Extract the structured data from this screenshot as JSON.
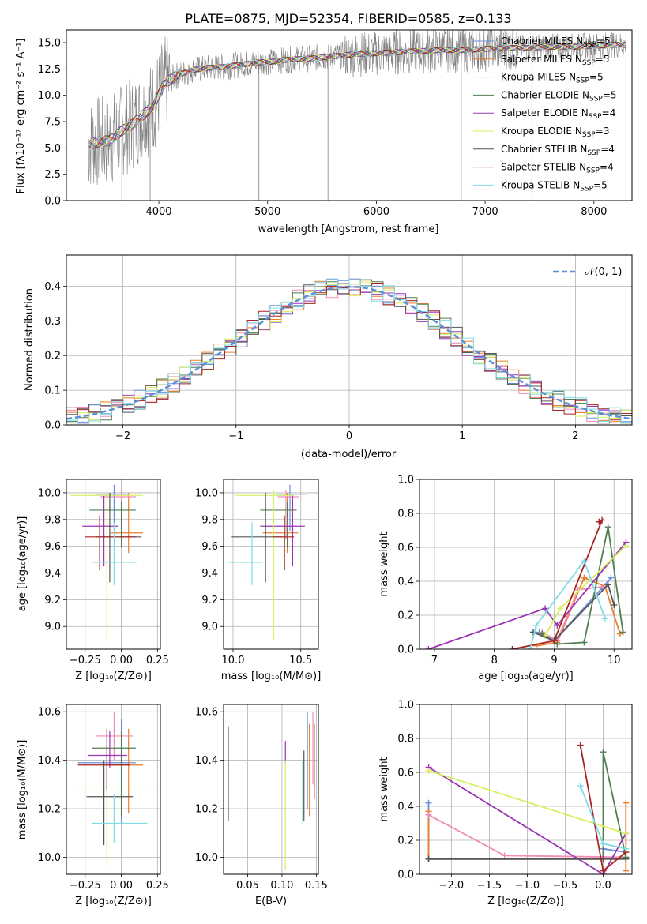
{
  "figure": {
    "title": "PLATE=0875, MJD=52354, FIBERID=0585, z=0.133"
  },
  "colors": [
    "#6a8ee0",
    "#e87d2e",
    "#f08cb8",
    "#4f7f4f",
    "#9b35b5",
    "#d8ef5e",
    "#555555",
    "#a82323",
    "#7fdbe6"
  ],
  "chart_data": [
    {
      "panel": "spectrum",
      "type": "line",
      "xlabel": "wavelength [Angstrom, rest frame]",
      "ylabel": "Flux [fλ10⁻¹⁷ erg cm⁻² s⁻¹ A⁻¹]",
      "xlim": [
        3150,
        8350
      ],
      "ylim": [
        0,
        16.2
      ],
      "xticks": [
        "4000",
        "5000",
        "6000",
        "7000",
        "8000"
      ],
      "yticks": [
        "0.0",
        "2.5",
        "5.0",
        "7.5",
        "10.0",
        "12.5",
        "15.0"
      ],
      "legend_position": "upper right",
      "data_x": [
        3350,
        3450,
        3550,
        3650,
        3750,
        3850,
        3950,
        4050,
        4150,
        4300,
        4450,
        4600,
        4750,
        4900,
        5050,
        5200,
        5400,
        5600,
        5800,
        6000,
        6200,
        6400,
        6600,
        6800,
        7000,
        7200,
        7400,
        7600,
        7800,
        8000,
        8200,
        8300
      ],
      "data_y": [
        5.3,
        5.6,
        5.7,
        6.6,
        7.2,
        8.1,
        9.0,
        11.1,
        11.8,
        12.4,
        12.6,
        12.7,
        12.9,
        13.1,
        13.2,
        13.4,
        13.5,
        13.7,
        13.9,
        14.0,
        14.1,
        14.2,
        14.3,
        14.3,
        14.4,
        14.5,
        14.5,
        14.6,
        14.6,
        14.7,
        14.8,
        14.8
      ],
      "series": [
        {
          "name": "Chabrier MILES",
          "nssp": "N",
          "nssp_sub": "SSP",
          "nssp_val": "=5"
        },
        {
          "name": "Salpeter MILES",
          "nssp": "N",
          "nssp_sub": "SSP",
          "nssp_val": "=5"
        },
        {
          "name": "Kroupa MILES",
          "nssp": "N",
          "nssp_sub": "SSP",
          "nssp_val": "=5"
        },
        {
          "name": "Chabrier ELODIE",
          "nssp": "N",
          "nssp_sub": "SSP",
          "nssp_val": "=5"
        },
        {
          "name": "Salpeter ELODIE",
          "nssp": "N",
          "nssp_sub": "SSP",
          "nssp_val": "=4"
        },
        {
          "name": "Kroupa ELODIE",
          "nssp": "N",
          "nssp_sub": "SSP",
          "nssp_val": "=3"
        },
        {
          "name": "Chabrier STELIB",
          "nssp": "N",
          "nssp_sub": "SSP",
          "nssp_val": "=4"
        },
        {
          "name": "Salpeter STELIB",
          "nssp": "N",
          "nssp_sub": "SSP",
          "nssp_val": "=4"
        },
        {
          "name": "Kroupa STELIB",
          "nssp": "N",
          "nssp_sub": "SSP",
          "nssp_val": "=5"
        }
      ]
    },
    {
      "panel": "residuals",
      "type": "histogram",
      "xlabel": "(data-model)/error",
      "ylabel": "Normed distribution",
      "xlim": [
        -2.5,
        2.5
      ],
      "ylim": [
        0,
        0.49
      ],
      "xticks": [
        "−2",
        "−1",
        "0",
        "1",
        "2"
      ],
      "yticks": [
        "0.0",
        "0.1",
        "0.2",
        "0.3",
        "0.4"
      ],
      "grid": true,
      "legend_position": "upper right",
      "reference_label": "𝒩(0, 1)",
      "bin_width": 0.1
    },
    {
      "panel": "age_vs_Z",
      "type": "errorbar",
      "xlabel": "Z [log₁₀(Z/Z⊙)]",
      "ylabel": "age  [log₁₀(age/yr)]",
      "xlim": [
        -0.38,
        0.27
      ],
      "ylim": [
        8.83,
        10.1
      ],
      "xticks": [
        "−0.25",
        "0.00",
        "0.25"
      ],
      "yticks": [
        "9.0",
        "9.2",
        "9.4",
        "9.6",
        "9.8",
        "10.0"
      ],
      "points": [
        {
          "x": -0.05,
          "y": 9.99,
          "xerr": [
            0.13,
            0.1
          ],
          "yerr": [
            0.28,
            0.07
          ]
        },
        {
          "x": 0.05,
          "y": 9.7,
          "xerr": [
            0.12,
            0.1
          ],
          "yerr": [
            0.15,
            0.3
          ]
        },
        {
          "x": 0.0,
          "y": 9.97,
          "xerr": [
            0.15,
            0.1
          ],
          "yerr": [
            0.32,
            0.05
          ]
        },
        {
          "x": 0.0,
          "y": 9.87,
          "xerr": [
            0.22,
            0.1
          ],
          "yerr": [
            0.28,
            0.06
          ]
        },
        {
          "x": -0.12,
          "y": 9.75,
          "xerr": [
            0.15,
            0.1
          ],
          "yerr": [
            0.3,
            0.23
          ]
        },
        {
          "x": -0.1,
          "y": 9.98,
          "xerr": [
            0.25,
            0.25
          ],
          "yerr": [
            1.08,
            0.04
          ]
        },
        {
          "x": -0.08,
          "y": 9.67,
          "xerr": [
            0.1,
            0.22
          ],
          "yerr": [
            0.34,
            0.33
          ]
        },
        {
          "x": -0.15,
          "y": 9.67,
          "xerr": [
            0.1,
            0.25
          ],
          "yerr": [
            0.25,
            0.16
          ]
        },
        {
          "x": -0.05,
          "y": 9.48,
          "xerr": [
            0.15,
            0.16
          ],
          "yerr": [
            0.17,
            0.3
          ]
        }
      ]
    },
    {
      "panel": "age_vs_mass",
      "type": "errorbar",
      "xlabel": "mass [log₁₀(M/M⊙)]",
      "xlim": [
        9.93,
        10.63
      ],
      "ylim": [
        8.83,
        10.1
      ],
      "xticks": [
        "10.0",
        "10.5"
      ],
      "yticks": [
        "9.0",
        "9.2",
        "9.4",
        "9.6",
        "9.8",
        "10.0"
      ],
      "points": [
        {
          "x": 10.42,
          "y": 9.99,
          "xerr": [
            0.1,
            0.13
          ],
          "yerr": [
            0.28,
            0.07
          ]
        },
        {
          "x": 10.4,
          "y": 9.7,
          "xerr": [
            0.18,
            0.08
          ],
          "yerr": [
            0.15,
            0.3
          ]
        },
        {
          "x": 10.39,
          "y": 9.97,
          "xerr": [
            0.06,
            0.1
          ],
          "yerr": [
            0.32,
            0.05
          ]
        },
        {
          "x": 10.4,
          "y": 9.87,
          "xerr": [
            0.2,
            0.07
          ],
          "yerr": [
            0.28,
            0.06
          ]
        },
        {
          "x": 10.44,
          "y": 9.75,
          "xerr": [
            0.24,
            0.09
          ],
          "yerr": [
            0.3,
            0.23
          ]
        },
        {
          "x": 10.3,
          "y": 9.98,
          "xerr": [
            0.28,
            0.15
          ],
          "yerr": [
            1.08,
            0.04
          ]
        },
        {
          "x": 10.24,
          "y": 9.67,
          "xerr": [
            0.25,
            0.13
          ],
          "yerr": [
            0.34,
            0.33
          ]
        },
        {
          "x": 10.38,
          "y": 9.67,
          "xerr": [
            0.09,
            0.07
          ],
          "yerr": [
            0.25,
            0.16
          ]
        },
        {
          "x": 10.14,
          "y": 9.48,
          "xerr": [
            0.18,
            0.08
          ],
          "yerr": [
            0.17,
            0.3
          ]
        }
      ]
    },
    {
      "panel": "weight_vs_age",
      "type": "line",
      "xlabel": "age  [log₁₀(age/yr)]",
      "ylabel": "mass weight",
      "xlim": [
        6.75,
        10.3
      ],
      "ylim": [
        0,
        1.0
      ],
      "xticks": [
        "7",
        "8",
        "9",
        "10"
      ],
      "yticks": [
        "0.0",
        "0.2",
        "0.4",
        "0.6",
        "0.8",
        "1.0"
      ],
      "series": [
        {
          "x": [
            8.75,
            9.0,
            9.8,
            9.95
          ],
          "y": [
            0.1,
            0.05,
            0.36,
            0.42
          ]
        },
        {
          "x": [
            8.7,
            9.05,
            9.5,
            9.85,
            10.1
          ],
          "y": [
            0.02,
            0.04,
            0.42,
            0.37,
            0.09
          ]
        },
        {
          "x": [
            8.8,
            9.05,
            9.4,
            9.85
          ],
          "y": [
            0.1,
            0.05,
            0.35,
            0.37
          ]
        },
        {
          "x": [
            8.8,
            9.05,
            9.5,
            9.9,
            10.15
          ],
          "y": [
            0.09,
            0.03,
            0.04,
            0.72,
            0.1
          ]
        },
        {
          "x": [
            6.9,
            8.85,
            9.05,
            10.2
          ],
          "y": [
            0.0,
            0.24,
            0.14,
            0.63
          ]
        },
        {
          "x": [
            8.85,
            9.1,
            10.2
          ],
          "y": [
            0.08,
            0.24,
            0.61
          ]
        },
        {
          "x": [
            8.65,
            9.0,
            9.9,
            10.0
          ],
          "y": [
            0.1,
            0.05,
            0.38,
            0.26
          ]
        },
        {
          "x": [
            8.3,
            9.0,
            9.8,
            9.75
          ],
          "y": [
            0.0,
            0.05,
            0.76,
            0.75
          ]
        },
        {
          "x": [
            8.6,
            8.7,
            9.5,
            9.85
          ],
          "y": [
            0.0,
            0.14,
            0.52,
            0.18
          ]
        }
      ]
    },
    {
      "panel": "mass_vs_Z",
      "type": "errorbar",
      "xlabel": "Z [log₁₀(Z/Z⊙)]",
      "ylabel": "mass [log₁₀(M/M⊙)]",
      "xlim": [
        -0.38,
        0.27
      ],
      "ylim": [
        9.93,
        10.63
      ],
      "xticks": [
        "−0.25",
        "0.00",
        "0.25"
      ],
      "yticks": [
        "10.0",
        "10.2",
        "10.4",
        "10.6"
      ],
      "points": [
        {
          "x": 0.0,
          "y": 10.39,
          "xerr": [
            0.3,
            0.1
          ],
          "yerr": [
            0.25,
            0.18
          ]
        },
        {
          "x": 0.05,
          "y": 10.38,
          "xerr": [
            0.15,
            0.1
          ],
          "yerr": [
            0.2,
            0.15
          ]
        },
        {
          "x": -0.05,
          "y": 10.5,
          "xerr": [
            0.13,
            0.13
          ],
          "yerr": [
            0.1,
            0.1
          ]
        },
        {
          "x": 0.0,
          "y": 10.45,
          "xerr": [
            0.2,
            0.1
          ],
          "yerr": [
            0.28,
            0.07
          ]
        },
        {
          "x": -0.08,
          "y": 10.42,
          "xerr": [
            0.15,
            0.12
          ],
          "yerr": [
            0.05,
            0.1
          ]
        },
        {
          "x": -0.1,
          "y": 10.29,
          "xerr": [
            0.25,
            0.35
          ],
          "yerr": [
            0.33,
            0.08
          ]
        },
        {
          "x": -0.12,
          "y": 10.25,
          "xerr": [
            0.12,
            0.2
          ],
          "yerr": [
            0.2,
            0.15
          ]
        },
        {
          "x": -0.1,
          "y": 10.38,
          "xerr": [
            0.2,
            0.16
          ],
          "yerr": [
            0.1,
            0.15
          ]
        },
        {
          "x": -0.05,
          "y": 10.14,
          "xerr": [
            0.15,
            0.23
          ],
          "yerr": [
            0.08,
            0.12
          ]
        }
      ]
    },
    {
      "panel": "mass_vs_EBV",
      "type": "errorbar",
      "xlabel": "E(B-V)",
      "xlim": [
        0.015,
        0.153
      ],
      "ylim": [
        9.93,
        10.63
      ],
      "xticks": [
        "0.05",
        "0.10",
        "0.15"
      ],
      "yticks": [
        "10.0",
        "10.2",
        "10.4",
        "10.6"
      ],
      "points": [
        {
          "x": 0.137,
          "y": 10.4,
          "yerr": [
            0.2,
            0.2
          ]
        },
        {
          "x": 0.14,
          "y": 10.37,
          "yerr": [
            0.2,
            0.18
          ]
        },
        {
          "x": 0.145,
          "y": 10.45,
          "yerr": [
            0.15,
            0.15
          ]
        },
        {
          "x": 0.022,
          "y": 10.35,
          "yerr": [
            0.2,
            0.19
          ]
        },
        {
          "x": 0.105,
          "y": 10.42,
          "yerr": [
            0.03,
            0.06
          ]
        },
        {
          "x": 0.105,
          "y": 10.2,
          "yerr": [
            0.25,
            0.2
          ]
        },
        {
          "x": 0.132,
          "y": 10.25,
          "yerr": [
            0.1,
            0.19
          ]
        },
        {
          "x": 0.147,
          "y": 10.42,
          "yerr": [
            0.18,
            0.13
          ]
        },
        {
          "x": 0.13,
          "y": 10.2,
          "yerr": [
            0.06,
            0.2
          ]
        }
      ]
    },
    {
      "panel": "weight_vs_Z",
      "type": "line",
      "xlabel": "Z [log₁₀(Z/Z⊙)]",
      "ylabel": "mass weight",
      "xlim": [
        -2.42,
        0.38
      ],
      "ylim": [
        0,
        1.0
      ],
      "xticks": [
        "−2.0",
        "−1.5",
        "−1.0",
        "−0.5",
        "0.0"
      ],
      "yticks": [
        "0.0",
        "0.2",
        "0.4",
        "0.6",
        "0.8",
        "1.0"
      ],
      "series": [
        {
          "x": [
            -2.3,
            -2.3,
            0.0,
            0.0,
            0.3,
            0.3
          ],
          "y": [
            0.42,
            0.09,
            0.09,
            0.15,
            0.13,
            0.09
          ]
        },
        {
          "x": [
            -2.3,
            -2.3,
            0.0,
            0.3,
            0.3,
            0.3
          ],
          "y": [
            0.37,
            0.09,
            0.09,
            0.09,
            0.42,
            0.02
          ]
        },
        {
          "x": [
            -2.3,
            -1.3,
            0.3
          ],
          "y": [
            0.35,
            0.11,
            0.1
          ]
        },
        {
          "x": [
            -2.3,
            0.0,
            0.0,
            0.3
          ],
          "y": [
            0.09,
            0.09,
            0.72,
            0.1
          ]
        },
        {
          "x": [
            -2.3,
            0.0,
            0.3
          ],
          "y": [
            0.63,
            0.0,
            0.24
          ]
        },
        {
          "x": [
            -2.3,
            0.3
          ],
          "y": [
            0.61,
            0.24
          ]
        },
        {
          "x": [
            -2.3,
            0.0,
            0.3
          ],
          "y": [
            0.09,
            0.09,
            0.09
          ]
        },
        {
          "x": [
            -0.3,
            0.0,
            0.3
          ],
          "y": [
            0.76,
            0.02,
            0.13
          ]
        },
        {
          "x": [
            -0.3,
            0.0,
            0.3
          ],
          "y": [
            0.52,
            0.18,
            0.15
          ]
        }
      ]
    }
  ]
}
